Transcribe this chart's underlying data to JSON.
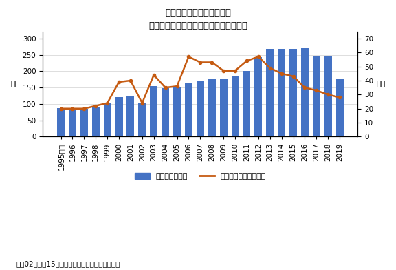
{
  "title": "セシルマクビーの店舗数と\nジャパンイマジネーションの売上高推移",
  "years": [
    "1995年度",
    "1996",
    "1997",
    "1998",
    "1999",
    "2000",
    "2001",
    "2002",
    "2003",
    "2004",
    "2005",
    "2006",
    "2007",
    "2008",
    "2009",
    "2010",
    "2011",
    "2012",
    "2013",
    "2014",
    "2015",
    "2016",
    "2017",
    "2018",
    "2019"
  ],
  "sales": [
    87,
    83,
    85,
    90,
    103,
    120,
    122,
    102,
    155,
    148,
    152,
    165,
    172,
    178,
    178,
    185,
    200,
    243,
    268,
    268,
    268,
    272,
    245,
    245,
    178
  ],
  "stores": [
    20,
    20,
    20,
    22,
    24,
    39,
    40,
    24,
    44,
    35,
    36,
    57,
    53,
    53,
    47,
    47,
    54,
    57,
    49,
    45,
    43,
    35,
    33,
    30,
    28
  ],
  "bar_color": "#4472c4",
  "line_color": "#c55a11",
  "left_ylabel": "億円",
  "right_ylabel": "店舗",
  "left_ylim": [
    0,
    320
  ],
  "right_ylim": [
    0,
    74.667
  ],
  "left_yticks": [
    0,
    50,
    100,
    150,
    200,
    250,
    300
  ],
  "right_yticks": [
    0,
    10,
    20,
    30,
    40,
    50,
    60,
    70
  ],
  "legend_store": "店舗数（右軸）",
  "legend_sales": "売上高（左軸：億円）",
  "note": "注：02年度と15年度は決算月変更のため変則決算",
  "title_fontsize": 9.5,
  "axis_label_fontsize": 8,
  "tick_fontsize": 7.5,
  "note_fontsize": 7.5,
  "legend_fontsize": 8,
  "bg_color": "#ffffff"
}
